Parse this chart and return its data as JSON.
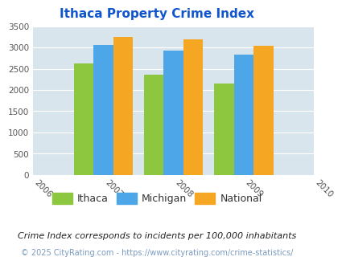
{
  "title": "Ithaca Property Crime Index",
  "years": [
    2007,
    2008,
    2009
  ],
  "ithaca": [
    2630,
    2360,
    2160
  ],
  "michigan": [
    3060,
    2930,
    2840
  ],
  "national": [
    3260,
    3200,
    3040
  ],
  "bar_colors": {
    "ithaca": "#8dc63f",
    "michigan": "#4da6e8",
    "national": "#f5a623"
  },
  "legend_labels": [
    "Ithaca",
    "Michigan",
    "National"
  ],
  "xlim": [
    2006,
    2010
  ],
  "ylim": [
    0,
    3500
  ],
  "yticks": [
    0,
    500,
    1000,
    1500,
    2000,
    2500,
    3000,
    3500
  ],
  "xticks": [
    2006,
    2007,
    2008,
    2009,
    2010
  ],
  "background_color": "#d9e5ec",
  "title_color": "#1155cc",
  "footer_text": "Crime Index corresponds to incidents per 100,000 inhabitants",
  "copyright_text": "© 2025 CityRating.com - https://www.cityrating.com/crime-statistics/",
  "bar_width": 0.28,
  "title_fontsize": 11,
  "axis_fontsize": 7.5,
  "legend_fontsize": 9,
  "footer_fontsize": 8,
  "copyright_fontsize": 7
}
